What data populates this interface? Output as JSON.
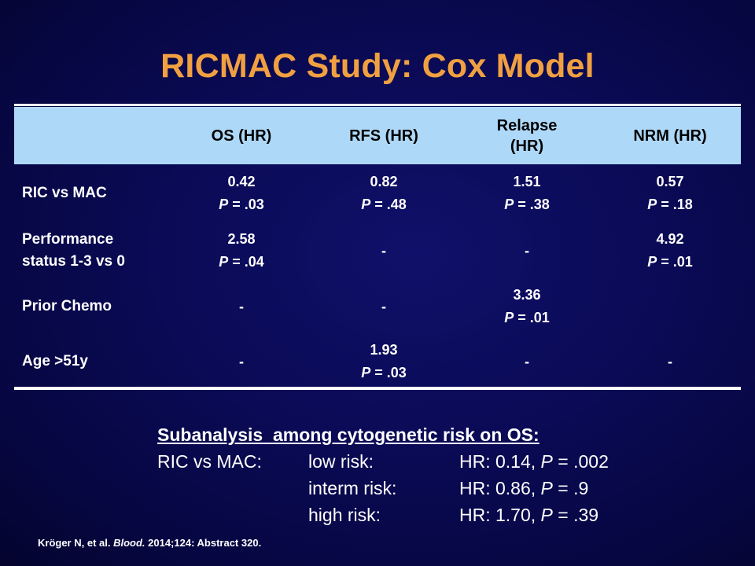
{
  "title": "RICMAC Study: Cox Model",
  "table": {
    "columns": [
      "OS (HR)",
      "RFS (HR)",
      "Relapse (HR)",
      "NRM (HR)"
    ],
    "header_lines": {
      "relapse_line1": "Relapse",
      "relapse_line2": "(HR)"
    },
    "p_prefix": "P",
    "rows": [
      {
        "label_line1": "RIC vs MAC",
        "label_line2": "",
        "cells": [
          {
            "hr": "0.42",
            "p": " = .03"
          },
          {
            "hr": "0.82",
            "p": " = .48"
          },
          {
            "hr": "1.51",
            "p": " = .38"
          },
          {
            "hr": "0.57",
            "p": " = .18"
          }
        ]
      },
      {
        "label_line1": "Performance",
        "label_line2": "status 1-3 vs 0",
        "cells": [
          {
            "hr": "2.58",
            "p": " = .04"
          },
          {
            "dash": "-"
          },
          {
            "dash": "-"
          },
          {
            "hr": "4.92",
            "p": " = .01"
          }
        ]
      },
      {
        "label_line1": "Prior Chemo",
        "label_line2": "",
        "cells": [
          {
            "dash": "-"
          },
          {
            "dash": "-"
          },
          {
            "hr": "3.36",
            "p": " = .01"
          },
          {}
        ]
      },
      {
        "label_line1": "Age >51y",
        "label_line2": "",
        "cells": [
          {
            "dash": "-"
          },
          {
            "hr": "1.93",
            "p": " = .03"
          },
          {
            "dash": "-"
          },
          {
            "dash": "-"
          }
        ]
      }
    ]
  },
  "subanalysis": {
    "heading": "Subanalysis  among cytogenetic risk on OS:",
    "comparison": "RIC vs MAC:",
    "rows": [
      {
        "risk": "low risk:",
        "hr_text": "HR: 0.14, ",
        "p_text": " = .002"
      },
      {
        "risk": "interm risk:",
        "hr_text": "HR: 0.86, ",
        "p_text": " = .9"
      },
      {
        "risk": "high risk:",
        "hr_text": "HR: 1.70, ",
        "p_text": " = .39"
      }
    ]
  },
  "citation": {
    "authors": "Kröger N, et al. ",
    "journal": "Blood.",
    "details": " 2014;124: Abstract 320."
  },
  "colors": {
    "title": "#f0a040",
    "header_band": "#aed8f8",
    "background": "#0a0a55"
  }
}
